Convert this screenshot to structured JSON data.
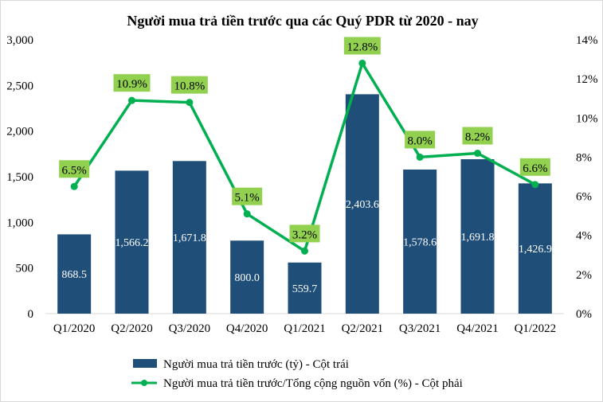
{
  "chart_data": {
    "type": "bar",
    "title": "Người mua trả tiền trước qua các Quý PDR từ 2020 - nay",
    "categories": [
      "Q1/2020",
      "Q2/2020",
      "Q3/2020",
      "Q4/2020",
      "Q1/2021",
      "Q2/2021",
      "Q3/2021",
      "Q4/2021",
      "Q1/2022"
    ],
    "series": [
      {
        "name": "Người mua trả tiền trước (tỷ) - Cột trái",
        "type": "bar",
        "axis": "left",
        "values": [
          868.5,
          1566.2,
          1671.8,
          800.0,
          559.7,
          2403.6,
          1578.6,
          1691.8,
          1426.9
        ],
        "labels": [
          "868.5",
          "1,566.2",
          "1,671.8",
          "800.0",
          "559.7",
          "2,403.6",
          "1,578.6",
          "1,691.8",
          "1,426.9"
        ]
      },
      {
        "name": "Người mua trả tiền trước/Tổng cộng nguồn vốn (%) - Cột phải",
        "type": "line",
        "axis": "right",
        "values": [
          6.5,
          10.9,
          10.8,
          5.1,
          3.2,
          12.8,
          8.0,
          8.2,
          6.6
        ],
        "labels": [
          "6.5%",
          "10.9%",
          "10.8%",
          "5.1%",
          "3.2%",
          "12.8%",
          "8.0%",
          "8.2%",
          "6.6%"
        ]
      }
    ],
    "yleft": {
      "lim": [
        0,
        3000
      ],
      "ticks": [
        "0",
        "500",
        "1,000",
        "1,500",
        "2,000",
        "2,500",
        "3,000"
      ]
    },
    "yright": {
      "lim": [
        0,
        14
      ],
      "ticks": [
        "0%",
        "2%",
        "4%",
        "6%",
        "8%",
        "10%",
        "12%",
        "14%"
      ]
    },
    "grid": false,
    "legend_position": "bottom",
    "colors": {
      "bar": "#1f4e79",
      "line": "#00b050",
      "label_box": "#92d050"
    }
  }
}
